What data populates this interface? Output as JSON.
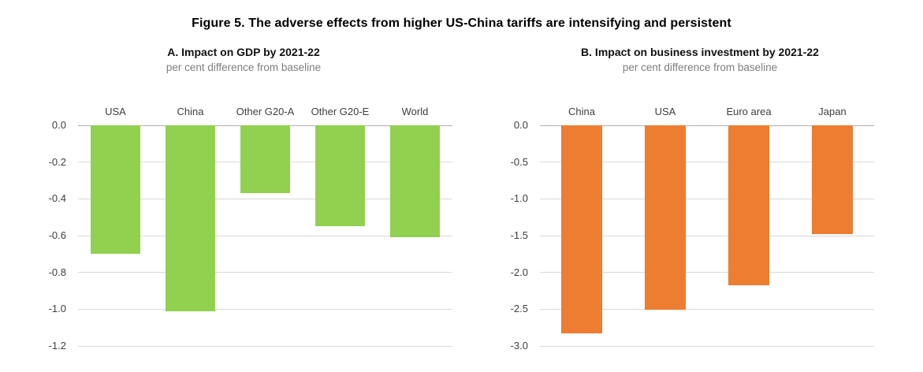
{
  "figure": {
    "title": "Figure 5. The adverse effects from higher US-China tariffs are intensifying and persistent"
  },
  "colors": {
    "bar_green": "#92d050",
    "bar_orange": "#ed7d31",
    "gridline": "#d9d9d9",
    "zero_line": "#b0b0b0",
    "text_dark": "#404040",
    "subtitle_gray": "#7f7f7f",
    "title_black": "#000000"
  },
  "chart_data": [
    {
      "type": "bar",
      "panel": "A",
      "title": "A. Impact on GDP by 2021-22",
      "subtitle": "per cent difference from baseline",
      "categories": [
        "USA",
        "China",
        "Other G20-A",
        "Other G20-E",
        "World"
      ],
      "values": [
        -0.7,
        -1.01,
        -0.37,
        -0.55,
        -0.61
      ],
      "bar_color": "#92d050",
      "ylim": [
        -1.2,
        0.0
      ],
      "yticks": [
        0.0,
        -0.2,
        -0.4,
        -0.6,
        -0.8,
        -1.0,
        -1.2
      ],
      "ytick_labels": [
        "0.0",
        "-0.2",
        "-0.4",
        "-0.6",
        "-0.8",
        "-1.0",
        "-1.2"
      ],
      "grid": true,
      "legend": "none",
      "xlabel": "",
      "ylabel": ""
    },
    {
      "type": "bar",
      "panel": "B",
      "title": "B. Impact on business investment by 2021-22",
      "subtitle": "per cent difference from baseline",
      "categories": [
        "China",
        "USA",
        "Euro area",
        "Japan"
      ],
      "values": [
        -2.83,
        -2.51,
        -2.18,
        -1.48
      ],
      "bar_color": "#ed7d31",
      "ylim": [
        -3.0,
        0.0
      ],
      "yticks": [
        0.0,
        -0.5,
        -1.0,
        -1.5,
        -2.0,
        -2.5,
        -3.0
      ],
      "ytick_labels": [
        "0.0",
        "-0.5",
        "-1.0",
        "-1.5",
        "-2.0",
        "-2.5",
        "-3.0"
      ],
      "grid": true,
      "legend": "none",
      "xlabel": "",
      "ylabel": ""
    }
  ]
}
